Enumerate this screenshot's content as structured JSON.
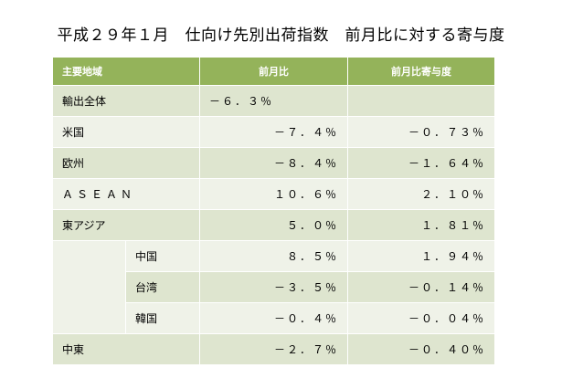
{
  "title": "平成２９年１月　仕向け先別出荷指数　前月比に対する寄与度",
  "table": {
    "headers": [
      "主要地域",
      "前月比",
      "前月比寄与度"
    ],
    "rows": [
      {
        "region": "輸出全体",
        "mom": "－６．３％",
        "contribution": ""
      },
      {
        "region": "米国",
        "mom": "－７．４％",
        "contribution": "－０．７３％"
      },
      {
        "region": "欧州",
        "mom": "－８．４％",
        "contribution": "－１．６４％"
      },
      {
        "region": "ＡＳＥＡＮ",
        "mom": "１０．６％",
        "contribution": "２．１０％"
      },
      {
        "region": "東アジア",
        "mom": "５．０％",
        "contribution": "１．８１％"
      },
      {
        "region": "中国",
        "mom": "８．５％",
        "contribution": "１．９４％"
      },
      {
        "region": "台湾",
        "mom": "－３．５％",
        "contribution": "－０．１４％"
      },
      {
        "region": "韓国",
        "mom": "－０．４％",
        "contribution": "－０．０４％"
      },
      {
        "region": "中東",
        "mom": "－２．７％",
        "contribution": "－０．４０％"
      }
    ]
  },
  "colors": {
    "header_bg": "#94b35a",
    "row_dark": "#dee5cf",
    "row_light": "#eff2e8"
  }
}
